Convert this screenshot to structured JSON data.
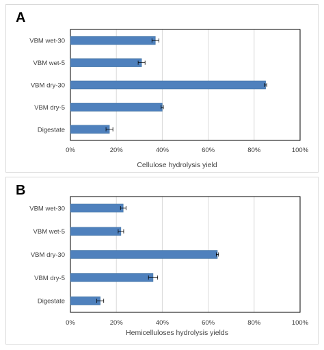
{
  "chart_data": [
    {
      "type": "bar",
      "orientation": "horizontal",
      "panel_label": "A",
      "categories": [
        "VBM wet-30",
        "VBM wet-5",
        "VBM dry-30",
        "VBM dry-5",
        "Digestate"
      ],
      "values": [
        0.37,
        0.31,
        0.85,
        0.4,
        0.17
      ],
      "errors": [
        0.015,
        0.015,
        0.005,
        0.005,
        0.015
      ],
      "xlabel": "Cellulose hydrolysis yield",
      "xlim": [
        0,
        1
      ],
      "xticks": [
        "0%",
        "20%",
        "40%",
        "60%",
        "80%",
        "100%"
      ],
      "grid": true,
      "bar_color": "#4f81bd"
    },
    {
      "type": "bar",
      "orientation": "horizontal",
      "panel_label": "B",
      "categories": [
        "VBM wet-30",
        "VBM wet-5",
        "VBM dry-30",
        "VBM dry-5",
        "Digestate"
      ],
      "values": [
        0.23,
        0.22,
        0.64,
        0.36,
        0.13
      ],
      "errors": [
        0.012,
        0.012,
        0.005,
        0.02,
        0.015
      ],
      "xlabel": "Hemicelluloses hydrolysis yields",
      "xlim": [
        0,
        1
      ],
      "xticks": [
        "0%",
        "20%",
        "40%",
        "60%",
        "80%",
        "100%"
      ],
      "grid": true,
      "bar_color": "#4f81bd"
    }
  ]
}
